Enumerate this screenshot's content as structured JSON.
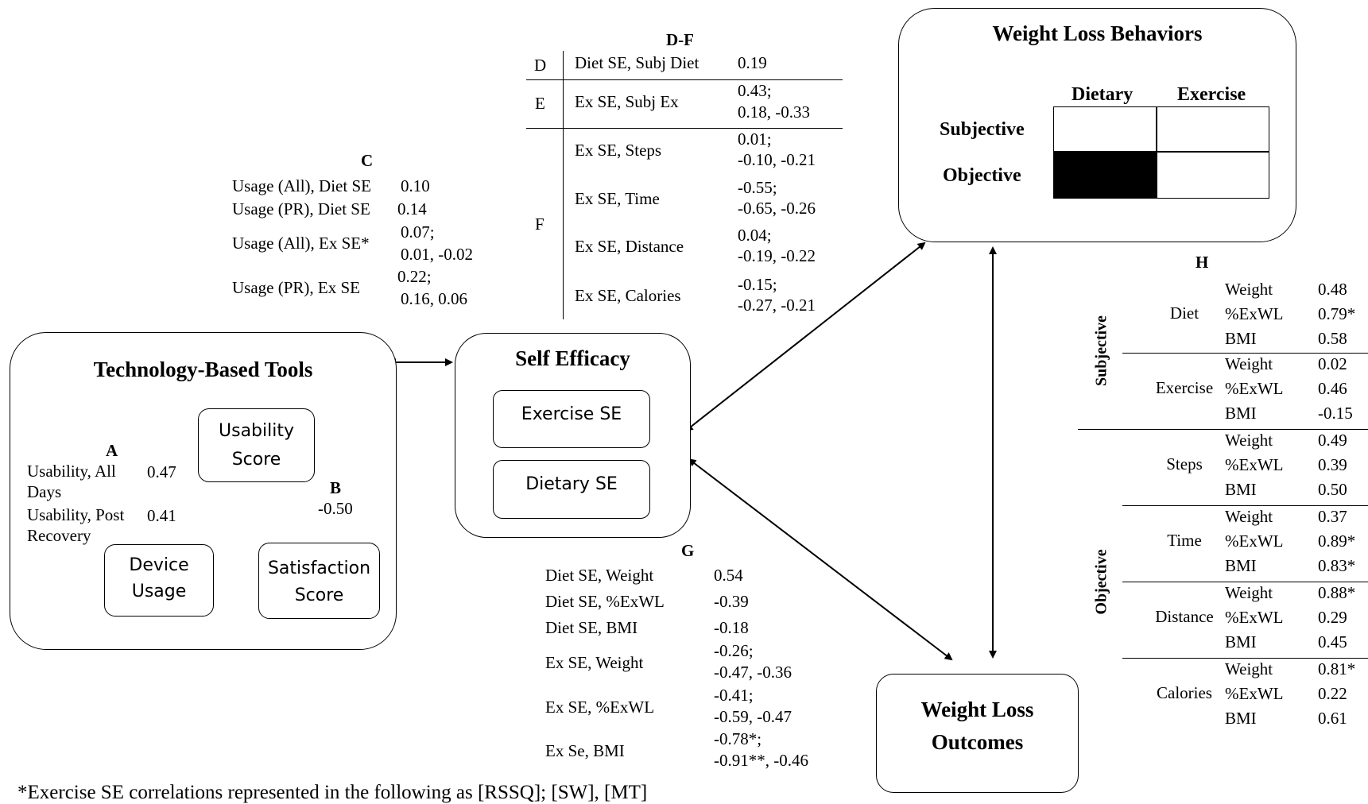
{
  "boxes": {
    "tech_tools": "Technology-Based Tools",
    "usability_score": [
      "Usability",
      "Score"
    ],
    "device_usage": [
      "Device",
      "Usage"
    ],
    "satisfaction_score": [
      "Satisfaction",
      "Score"
    ],
    "self_efficacy": "Self Efficacy",
    "exercise_se": "Exercise SE",
    "dietary_se": "Dietary SE",
    "wlb": "Weight Loss Behaviors",
    "wlb_dietary": "Dietary",
    "wlb_exercise": "Exercise",
    "wlb_subjective": "Subjective",
    "wlb_objective": "Objective",
    "wlo": [
      "Weight Loss",
      "Outcomes"
    ]
  },
  "panel_a": {
    "label": "A",
    "row1_label": [
      "Usability, All",
      "Days"
    ],
    "row1_value": "0.47",
    "row2_label": [
      "Usability, Post",
      "Recovery"
    ],
    "row2_value": "0.41"
  },
  "panel_b": {
    "label": "B",
    "value": "-0.50"
  },
  "panel_c": {
    "label": "C",
    "rows": [
      {
        "label": "Usage (All), Diet SE",
        "value": [
          "0.10"
        ]
      },
      {
        "label": "Usage (PR), Diet SE",
        "value": [
          "0.14"
        ]
      },
      {
        "label": "Usage (All), Ex SE*",
        "value": [
          "0.07;",
          "0.01, -0.02"
        ]
      },
      {
        "label": "Usage (PR), Ex SE",
        "value": [
          "0.22;",
          "0.16, 0.06"
        ]
      }
    ]
  },
  "panel_df": {
    "title": "D-F",
    "d": {
      "letter": "D",
      "label": "Diet SE, Subj Diet",
      "value": [
        "0.19"
      ]
    },
    "e": {
      "letter": "E",
      "label": "Ex SE, Subj Ex",
      "value": [
        "0.43;",
        "0.18, -0.33"
      ]
    },
    "f_letter": "F",
    "f_rows": [
      {
        "label": "Ex SE, Steps",
        "value": [
          "0.01;",
          "-0.10, -0.21"
        ]
      },
      {
        "label": "Ex SE, Time",
        "value": [
          "-0.55;",
          "-0.65, -0.26"
        ]
      },
      {
        "label": "Ex SE, Distance",
        "value": [
          "0.04;",
          "-0.19, -0.22"
        ]
      },
      {
        "label": "Ex SE, Calories",
        "value": [
          "-0.15;",
          "-0.27, -0.21"
        ]
      }
    ]
  },
  "panel_g": {
    "label": "G",
    "rows": [
      {
        "label": "Diet SE, Weight",
        "value": [
          "0.54"
        ]
      },
      {
        "label": "Diet SE, %ExWL",
        "value": [
          "-0.39"
        ]
      },
      {
        "label": "Diet SE, BMI",
        "value": [
          "-0.18"
        ]
      },
      {
        "label": "Ex SE, Weight",
        "value": [
          "-0.26;",
          "-0.47, -0.36"
        ]
      },
      {
        "label": "Ex SE, %ExWL",
        "value": [
          "-0.41;",
          "-0.59, -0.47"
        ]
      },
      {
        "label": "Ex Se, BMI",
        "value": [
          "-0.78*;",
          "-0.91**, -0.46"
        ]
      }
    ]
  },
  "panel_h": {
    "label": "H",
    "group_subjective": "Subjective",
    "group_objective": "Objective",
    "blocks": [
      {
        "name": "Diet",
        "rows": [
          [
            "Weight",
            "0.48"
          ],
          [
            "%ExWL",
            "0.79*"
          ],
          [
            "BMI",
            "0.58"
          ]
        ]
      },
      {
        "name": "Exercise",
        "rows": [
          [
            "Weight",
            "0.02"
          ],
          [
            "%ExWL",
            "0.46"
          ],
          [
            "BMI",
            "-0.15"
          ]
        ]
      },
      {
        "name": "Steps",
        "rows": [
          [
            "Weight",
            "0.49"
          ],
          [
            "%ExWL",
            "0.39"
          ],
          [
            "BMI",
            "0.50"
          ]
        ]
      },
      {
        "name": "Time",
        "rows": [
          [
            "Weight",
            "0.37"
          ],
          [
            "%ExWL",
            "0.89*"
          ],
          [
            "BMI",
            "0.83*"
          ]
        ]
      },
      {
        "name": "Distance",
        "rows": [
          [
            "Weight",
            "0.88*"
          ],
          [
            "%ExWL",
            "0.29"
          ],
          [
            "BMI",
            "0.45"
          ]
        ]
      },
      {
        "name": "Calories",
        "rows": [
          [
            "Weight",
            "0.81*"
          ],
          [
            "%ExWL",
            "0.22"
          ],
          [
            "BMI",
            "0.61"
          ]
        ]
      }
    ]
  },
  "footnote": "*Exercise SE correlations represented in the following as [RSSQ]; [SW], [MT]"
}
